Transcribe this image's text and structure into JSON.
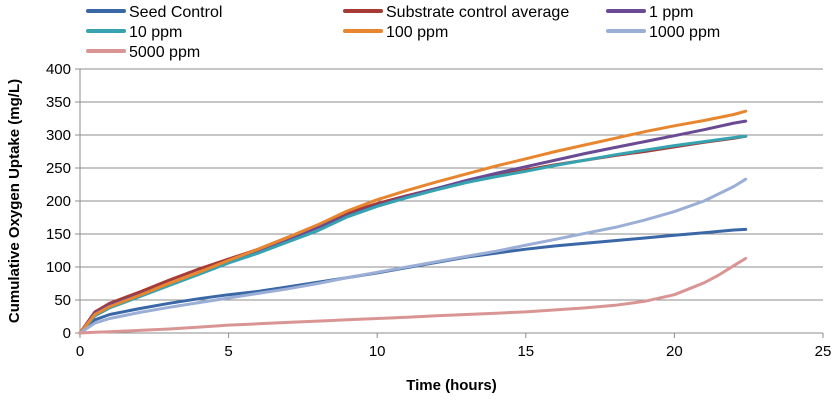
{
  "chart_data": {
    "type": "line",
    "xlabel": "Time (hours)",
    "ylabel": "Cumulative Oxygen Uptake (mg/L)",
    "xlim": [
      0,
      25
    ],
    "ylim": [
      0,
      400
    ],
    "xticks": [
      0,
      5,
      10,
      15,
      20,
      25
    ],
    "yticks": [
      0,
      50,
      100,
      150,
      200,
      250,
      300,
      350,
      400
    ],
    "grid": "horizontal",
    "legend_position": "top",
    "series": [
      {
        "name": "Seed Control",
        "color": "#3A67A6",
        "x": [
          0,
          0.5,
          1,
          2,
          3,
          4,
          5,
          6,
          7,
          8,
          9,
          10,
          11,
          12,
          13,
          14,
          15,
          16,
          17,
          18,
          19,
          20,
          21,
          22,
          22.4
        ],
        "y": [
          0,
          20,
          28,
          37,
          45,
          52,
          58,
          63,
          70,
          77,
          84,
          91,
          99,
          107,
          115,
          121,
          127,
          132,
          136,
          140,
          144,
          148,
          152,
          156,
          157
        ]
      },
      {
        "name": "Substrate control average",
        "color": "#A63A35",
        "x": [
          0,
          0.5,
          1,
          2,
          3,
          4,
          5,
          6,
          7,
          8,
          9,
          10,
          11,
          12,
          13,
          14,
          15,
          16,
          17,
          18,
          19,
          20,
          21,
          22,
          22.4
        ],
        "y": [
          0,
          32,
          45,
          62,
          80,
          97,
          112,
          127,
          145,
          163,
          182,
          196,
          208,
          219,
          229,
          238,
          247,
          255,
          262,
          269,
          275,
          282,
          289,
          295,
          298
        ]
      },
      {
        "name": "1 ppm",
        "color": "#6B4A94",
        "x": [
          0,
          0.5,
          1,
          2,
          3,
          4,
          5,
          6,
          7,
          8,
          9,
          10,
          11,
          12,
          13,
          14,
          15,
          16,
          17,
          18,
          19,
          20,
          21,
          22,
          22.4
        ],
        "y": [
          0,
          30,
          42,
          58,
          74,
          91,
          108,
          124,
          142,
          160,
          178,
          193,
          207,
          219,
          231,
          242,
          252,
          262,
          272,
          281,
          290,
          299,
          308,
          318,
          321
        ]
      },
      {
        "name": "10 ppm",
        "color": "#35A3B0",
        "x": [
          0,
          0.5,
          1,
          2,
          3,
          4,
          5,
          6,
          7,
          8,
          9,
          10,
          11,
          12,
          13,
          14,
          15,
          16,
          17,
          18,
          19,
          20,
          21,
          22,
          22.4
        ],
        "y": [
          0,
          26,
          38,
          55,
          72,
          89,
          106,
          121,
          138,
          155,
          176,
          192,
          205,
          217,
          228,
          237,
          245,
          254,
          262,
          270,
          277,
          284,
          290,
          296,
          298
        ]
      },
      {
        "name": "100 ppm",
        "color": "#E8862F",
        "x": [
          0,
          0.5,
          1,
          2,
          3,
          4,
          5,
          6,
          7,
          8,
          9,
          10,
          11,
          12,
          13,
          14,
          15,
          16,
          17,
          18,
          19,
          20,
          21,
          22,
          22.4
        ],
        "y": [
          0,
          28,
          40,
          57,
          75,
          92,
          110,
          127,
          145,
          164,
          185,
          202,
          216,
          229,
          241,
          253,
          264,
          275,
          285,
          295,
          305,
          314,
          322,
          331,
          336
        ]
      },
      {
        "name": "1000 ppm",
        "color": "#9AAED6",
        "x": [
          0,
          0.5,
          1,
          2,
          3,
          4,
          5,
          6,
          7,
          8,
          9,
          10,
          11,
          12,
          13,
          14,
          15,
          16,
          17,
          18,
          19,
          20,
          21,
          22,
          22.4
        ],
        "y": [
          0,
          15,
          22,
          31,
          39,
          46,
          53,
          60,
          67,
          75,
          84,
          92,
          100,
          108,
          116,
          124,
          133,
          142,
          151,
          160,
          171,
          184,
          200,
          222,
          233
        ]
      },
      {
        "name": "5000 ppm",
        "color": "#D99594",
        "x": [
          0,
          0.5,
          1,
          2,
          3,
          4,
          5,
          6,
          7,
          8,
          9,
          10,
          11,
          12,
          13,
          14,
          15,
          16,
          17,
          18,
          19,
          20,
          21,
          21.5,
          22,
          22.4
        ],
        "y": [
          0,
          1,
          2,
          4,
          6,
          9,
          12,
          14,
          16,
          18,
          20,
          22,
          24,
          26,
          28,
          30,
          32,
          35,
          38,
          42,
          48,
          58,
          76,
          88,
          102,
          113
        ]
      }
    ]
  }
}
